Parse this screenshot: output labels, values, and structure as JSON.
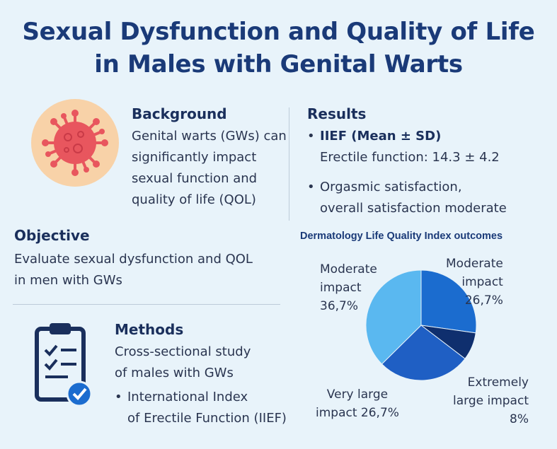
{
  "title": {
    "line1": "Sexual Dysfunction and Quality of Life",
    "line2": "in Males with Genital Warts"
  },
  "background": {
    "heading": "Background",
    "lines": [
      "Genital warts (GWs) can",
      "significantly impact",
      "sexual function and",
      "quality of life (QOL)"
    ],
    "icon": "virus-icon"
  },
  "objective": {
    "heading": "Objective",
    "lines": [
      "Evaluate sexual dysfunction and QOL",
      "in men with GWs"
    ]
  },
  "methods": {
    "heading": "Methods",
    "lines": [
      "Cross-sectional study",
      "of males with GWs"
    ],
    "bullet_lines": [
      "International Index",
      "of Erectile Function (IIEF)"
    ],
    "icon": "clipboard-check-icon"
  },
  "results": {
    "heading": "Results",
    "bullet1_title": "IIEF (Mean ± SD)",
    "bullet1_text": "Erectile function: 14.3 ± 4.2",
    "bullet2_lines": [
      "Orgasmic satisfaction,",
      "overall satisfaction moderate"
    ]
  },
  "colors": {
    "title": "#1a3a78",
    "background": "#e8f3fa",
    "slice_light": "#5ab8f0",
    "slice_mid": "#1b6ccf",
    "slice_dark": "#0f2f6e",
    "slice_medium": "#1f5fc4"
  },
  "chart_data": {
    "type": "pie",
    "title": "Dermatology Life Quality Index outcomes",
    "slices": [
      {
        "label": "Moderate impact",
        "value": 36.7,
        "display": "36,7%",
        "color": "#5ab8f0"
      },
      {
        "label": "Moderate impact",
        "value": 26.7,
        "display": "26,7%",
        "color": "#1b6ccf"
      },
      {
        "label": "Extremely large impact",
        "value": 8,
        "display": "8%",
        "color": "#0f2f6e"
      },
      {
        "label": "Very large impact",
        "value": 26.7,
        "display": "26,7%",
        "color": "#1f5fc4"
      }
    ],
    "label_texts": {
      "lab0": [
        "Moderate",
        "impact",
        "36,7%"
      ],
      "lab1": [
        "Moderate",
        "impact",
        "26,7%"
      ],
      "lab2": [
        "Extremely",
        "large impact",
        "8%"
      ],
      "lab3": [
        "Very large",
        "impact 26,7%"
      ]
    }
  }
}
